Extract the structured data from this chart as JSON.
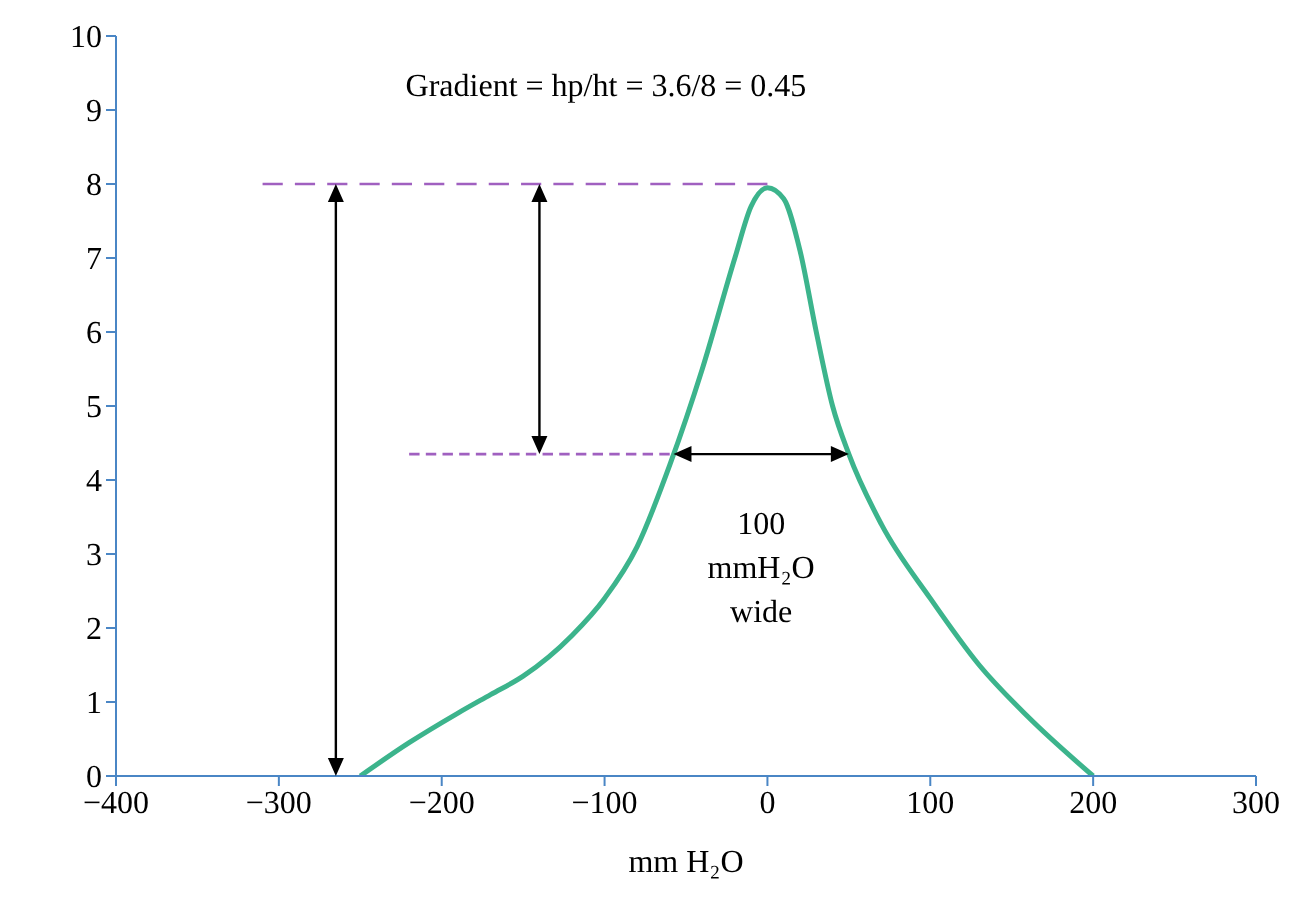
{
  "chart_data": {
    "type": "line",
    "xlabel": "mm H₂O",
    "xlim": [
      -400,
      300
    ],
    "xticks": [
      -400,
      -300,
      -200,
      -100,
      0,
      100,
      200,
      300
    ],
    "ylim": [
      0,
      10
    ],
    "yticks": [
      0,
      1,
      2,
      3,
      4,
      5,
      6,
      7,
      8,
      9,
      10
    ],
    "grid": false,
    "marker": "none",
    "series": [
      {
        "color": "#3cb48c",
        "line_style": "solid",
        "x": [
          -250,
          -220,
          -190,
          -170,
          -150,
          -120,
          -100,
          -80,
          -60,
          -40,
          -20,
          -10,
          0,
          10,
          20,
          30,
          40,
          50,
          70,
          100,
          130,
          160,
          200
        ],
        "values": [
          0,
          0.45,
          0.85,
          1.1,
          1.35,
          1.9,
          2.4,
          3.1,
          4.2,
          5.5,
          7.0,
          7.7,
          7.95,
          7.8,
          7.1,
          6.0,
          5.0,
          4.35,
          3.4,
          2.4,
          1.5,
          0.8,
          0
        ]
      },
      {
        "color": "#a060c0",
        "line_style": "dashed",
        "x": [
          -310,
          0
        ],
        "values": [
          8,
          8
        ]
      },
      {
        "color": "#a060c0",
        "line_style": "dashed",
        "x": [
          -220,
          -60
        ],
        "values": [
          4.35,
          4.35
        ]
      }
    ],
    "annotations": [
      "Gradient = hp/ht = 3.6/8 = 0.45",
      "100 mmH₂O wide"
    ]
  }
}
